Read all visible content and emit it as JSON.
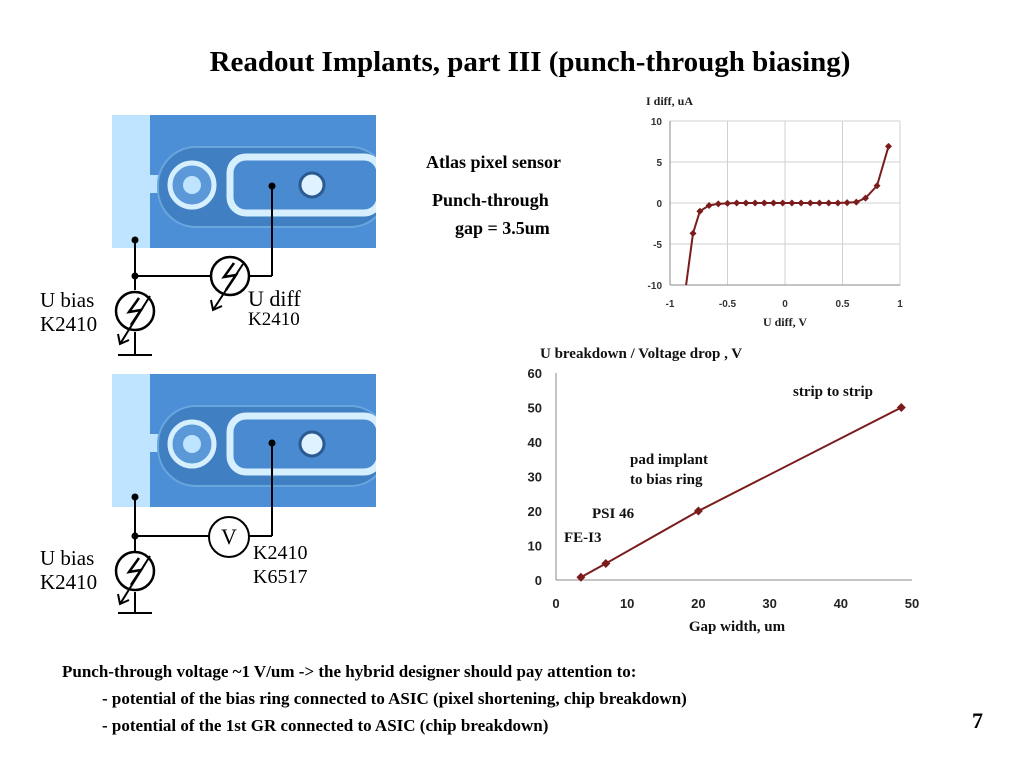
{
  "slide": {
    "title": "Readout Implants, part III (punch-through biasing)",
    "page_number": "7"
  },
  "circuit_top": {
    "u_bias": "U bias",
    "u_bias_dev": "K2410",
    "u_diff": "U diff",
    "u_diff_dev": "K2410"
  },
  "circuit_bottom": {
    "u_bias": "U bias",
    "u_bias_dev": "K2410",
    "meter_symbol": "V",
    "meter_dev1": "K2410",
    "meter_dev2": "K6517"
  },
  "sensor_info": {
    "line1": "Atlas pixel sensor",
    "line2": "Punch-through",
    "line3": "gap = 3.5um"
  },
  "bottom_text": {
    "line1": "Punch-through voltage ~1 V/um  ->  the hybrid designer should pay attention to:",
    "line2": "- potential of the bias ring connected to ASIC (pixel shortening, chip breakdown)",
    "line3": "- potential of the 1st GR connected to ASIC (chip breakdown)"
  },
  "colors": {
    "series": "#7b1c1c",
    "photo_bg": "#4c8fd6",
    "strip": "#bfe4ff"
  },
  "chart_data": [
    {
      "type": "line",
      "title": "",
      "ylabel": "I diff,  uA",
      "xlabel": "U diff, V",
      "xlim": [
        -1,
        1
      ],
      "ylim": [
        -10,
        10
      ],
      "x_ticks": [
        "-1",
        "-0.5",
        "0",
        "0.5",
        "1"
      ],
      "y_ticks": [
        "10",
        "5",
        "0",
        "-5",
        "-10"
      ],
      "grid": true,
      "series": [
        {
          "x": [
            -0.86,
            -0.8,
            -0.74,
            -0.66,
            -0.58,
            -0.5,
            -0.42,
            -0.34,
            -0.26,
            -0.18,
            -0.1,
            -0.02,
            0.06,
            0.14,
            0.22,
            0.3,
            0.38,
            0.46,
            0.54,
            0.62,
            0.7,
            0.8,
            0.9
          ],
          "y": [
            -10,
            -3.7,
            -1.0,
            -0.3,
            -0.1,
            -0.05,
            0,
            0,
            0,
            0,
            0,
            0,
            0,
            0,
            0,
            0,
            0,
            0,
            0.05,
            0.1,
            0.6,
            2.1,
            6.9
          ]
        }
      ]
    },
    {
      "type": "line",
      "title": "U breakdown  / Voltage drop , V",
      "xlabel": "Gap width, um",
      "ylabel": "",
      "xlim": [
        0,
        50
      ],
      "ylim": [
        0,
        60
      ],
      "x_ticks": [
        "0",
        "10",
        "20",
        "30",
        "40",
        "50"
      ],
      "y_ticks": [
        "60",
        "50",
        "40",
        "30",
        "20",
        "10",
        "0"
      ],
      "grid": false,
      "series": [
        {
          "x": [
            3.5,
            7,
            20,
            48.5
          ],
          "y": [
            0.8,
            4.8,
            20,
            50
          ]
        }
      ],
      "annotations": [
        "strip to strip",
        "pad implant",
        "to bias ring",
        "PSI 46",
        "FE-I3"
      ]
    }
  ]
}
